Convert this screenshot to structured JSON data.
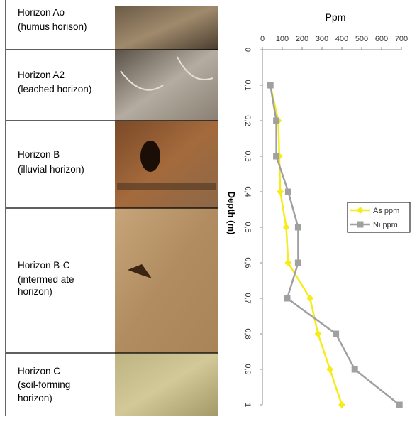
{
  "profile": {
    "horizons": [
      {
        "lines": [
          "Horizon Ao",
          "(humus horison)"
        ]
      },
      {
        "lines": [
          "Horizon A2",
          "(leached horizon)"
        ]
      },
      {
        "lines": [
          "Horizon B",
          "(illuvial horizon)"
        ]
      },
      {
        "lines": [
          "Horizon B-C",
          "(intermed ate",
          "horizon)"
        ]
      },
      {
        "lines": [
          "Horizon C",
          "(soil-forming",
          "horizon)"
        ]
      }
    ]
  },
  "chart_data": {
    "type": "line",
    "title": "Ppm",
    "y_label": "Depth (m)",
    "y": [
      0.1,
      0.2,
      0.3,
      0.4,
      0.5,
      0.6,
      0.7,
      0.8,
      0.9,
      1
    ],
    "series": [
      {
        "name": "As ppm",
        "color": "#f5ec1a",
        "marker": "diamond",
        "values": [
          40,
          80,
          85,
          90,
          120,
          130,
          240,
          280,
          340,
          400
        ]
      },
      {
        "name": "Ni ppm",
        "color": "#a0a0a0",
        "marker": "square",
        "values": [
          40,
          70,
          70,
          130,
          180,
          180,
          125,
          370,
          465,
          690
        ]
      }
    ],
    "xlim": [
      0,
      700
    ],
    "xticks": [
      0,
      100,
      200,
      300,
      400,
      500,
      600,
      700
    ],
    "ylim": [
      0,
      1
    ],
    "yticks": [
      0,
      {
        "value": 0.1,
        "label": "0,1"
      },
      {
        "value": 0.2,
        "label": "0,2"
      },
      {
        "value": 0.3,
        "label": "0,3"
      },
      {
        "value": 0.4,
        "label": "0,4"
      },
      {
        "value": 0.5,
        "label": "0,5"
      },
      {
        "value": 0.6,
        "label": "0,6"
      },
      {
        "value": 0.7,
        "label": "0,7"
      },
      {
        "value": 0.8,
        "label": "0,8"
      },
      {
        "value": 0.9,
        "label": "0,9"
      },
      1
    ],
    "legend": "right"
  }
}
